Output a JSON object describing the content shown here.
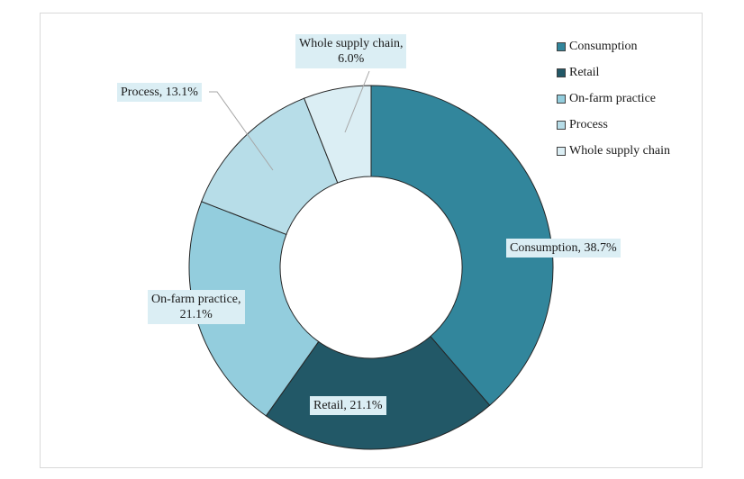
{
  "chart_data": {
    "type": "pie",
    "donut": true,
    "title": "",
    "categories": [
      "Consumption",
      "Retail",
      "On-farm practice",
      "Process",
      "Whole supply chain"
    ],
    "values": [
      38.7,
      21.1,
      21.1,
      13.1,
      6.0
    ],
    "unit": "%",
    "colors": [
      "#32869c",
      "#225867",
      "#93cddd",
      "#b7dde8",
      "#dbeef4"
    ],
    "data_labels": [
      {
        "line1": "Consumption, 38.7%"
      },
      {
        "line1": "Retail, 21.1%"
      },
      {
        "line1": "On-farm practice,",
        "line2": "21.1%"
      },
      {
        "line1": "Process, 13.1%"
      },
      {
        "line1": "Whole supply chain,",
        "line2": "6.0%"
      }
    ],
    "legend": {
      "placement": "top-right",
      "entries": [
        "Consumption",
        "Retail",
        "On-farm practice",
        "Process",
        "Whole supply chain"
      ]
    }
  }
}
